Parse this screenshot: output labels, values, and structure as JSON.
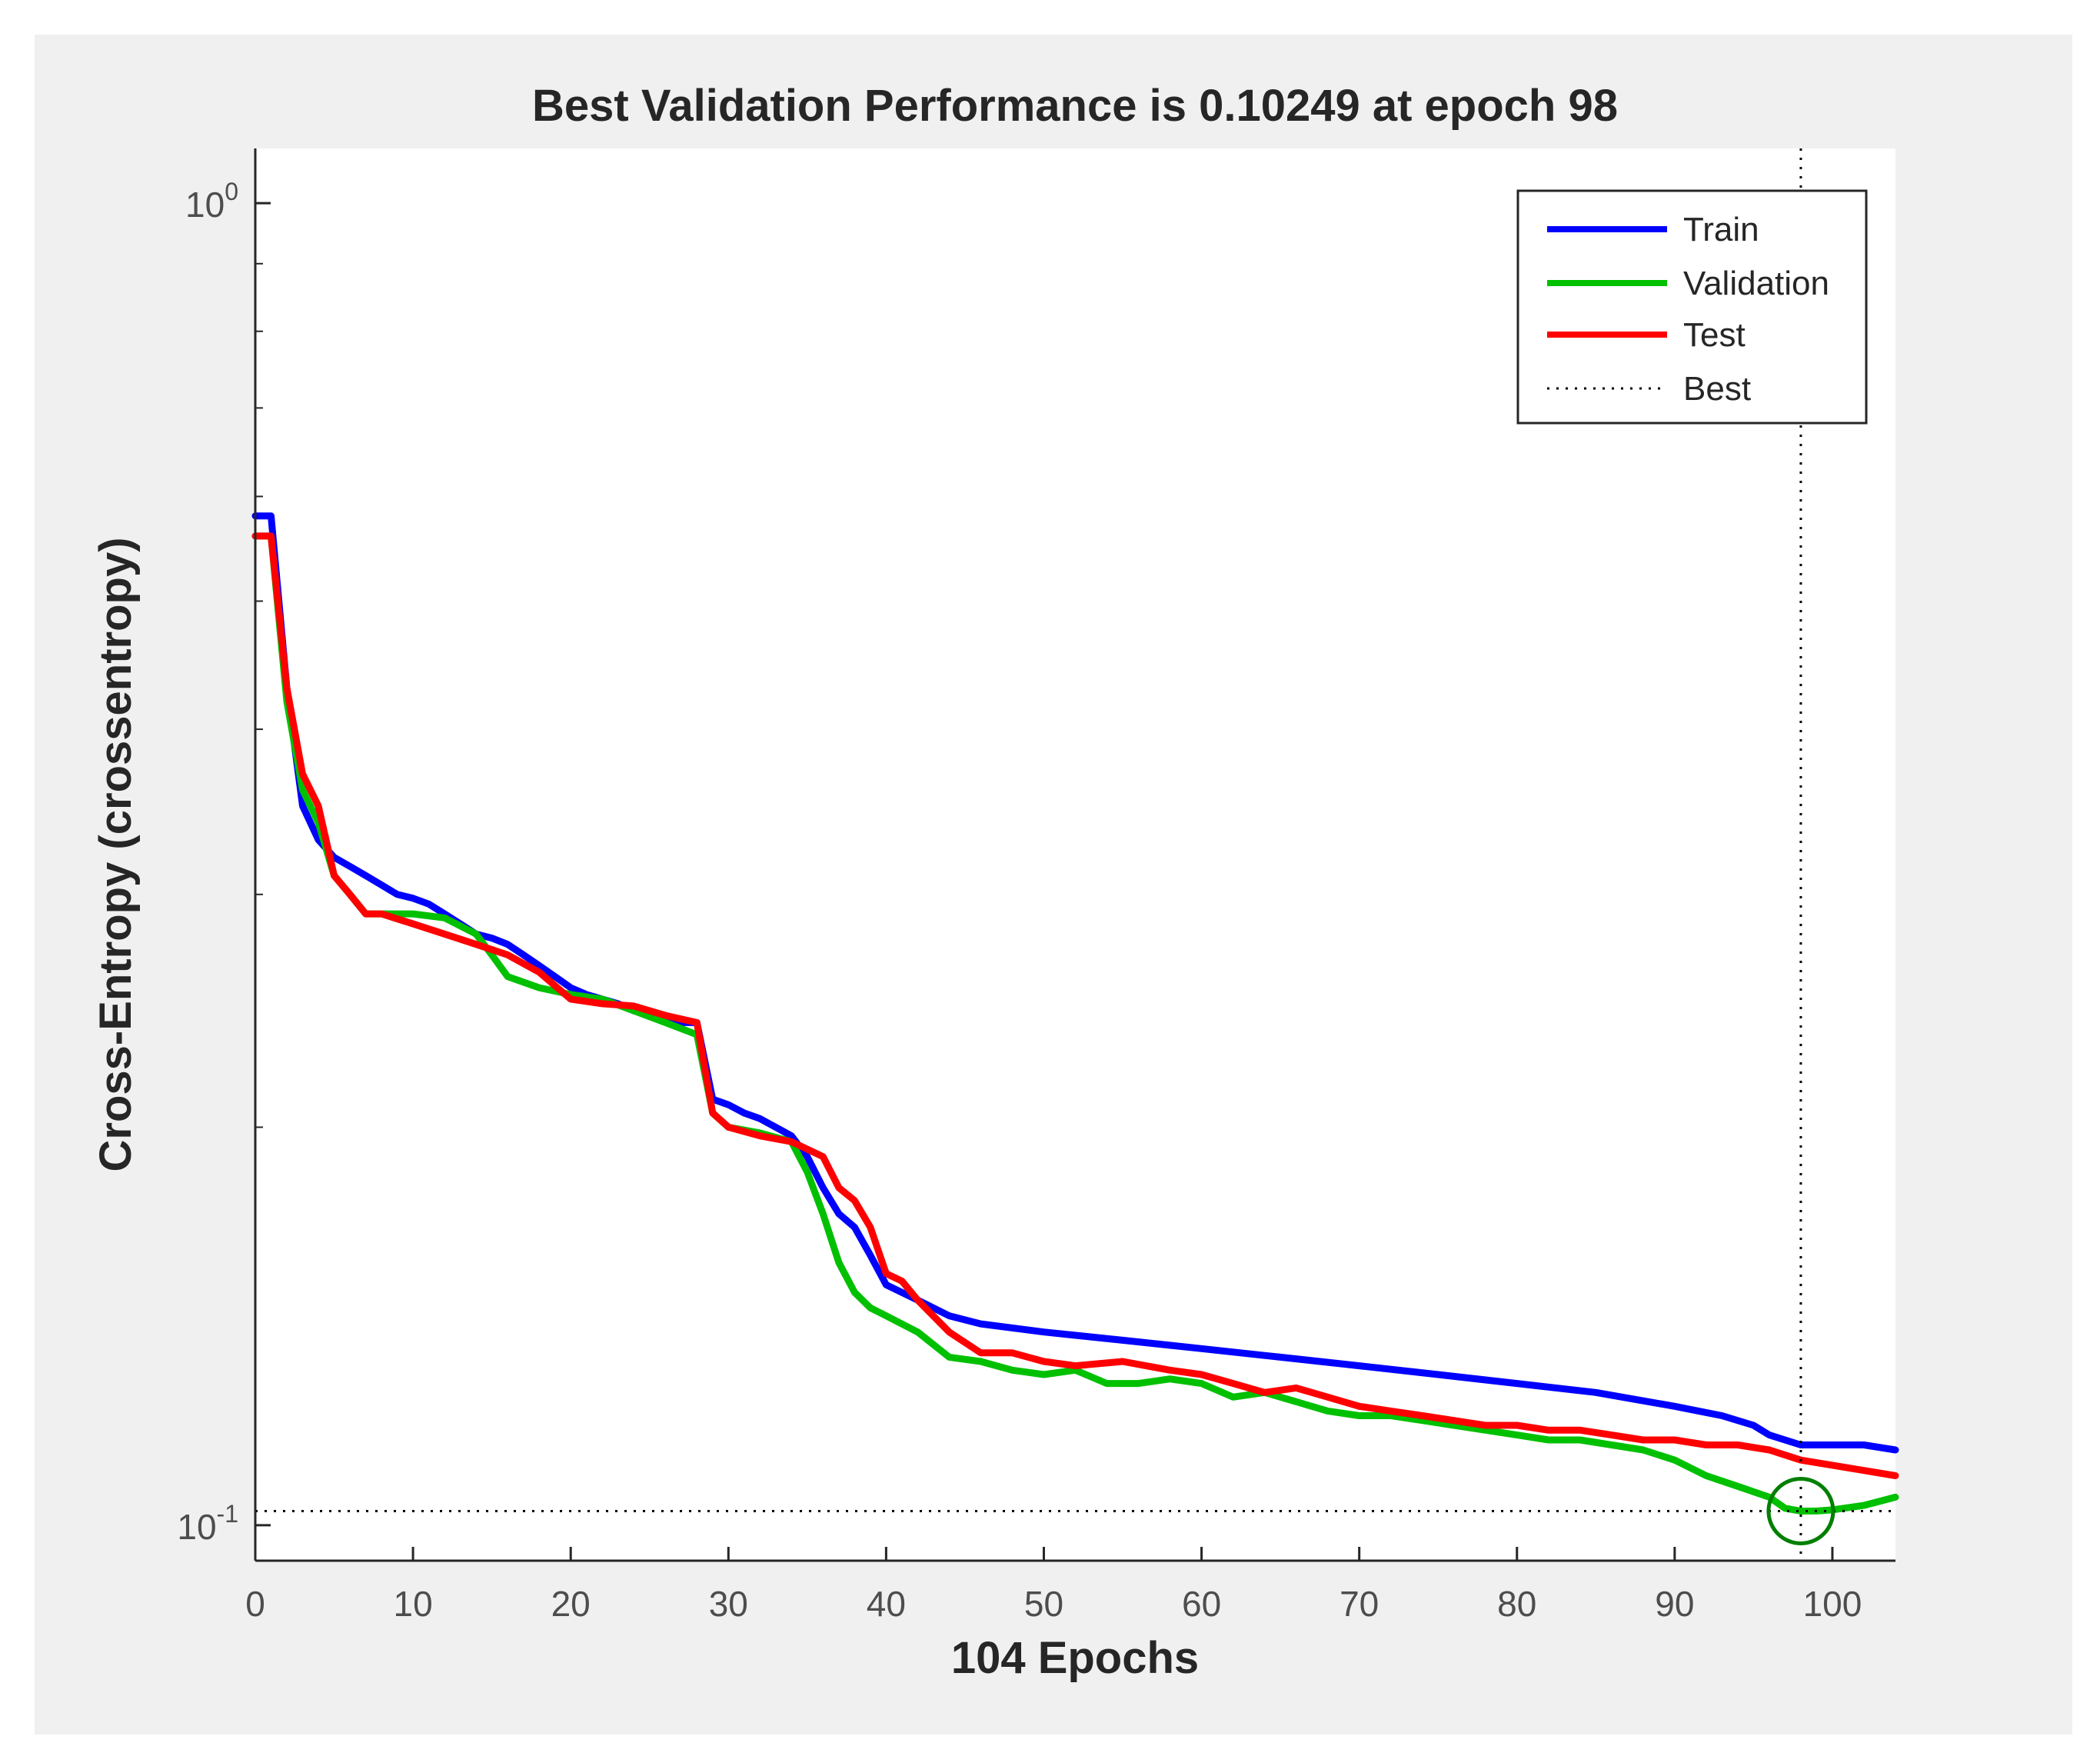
{
  "chart_data": {
    "type": "line",
    "title": "Best Validation Performance is 0.10249 at epoch 98",
    "xlabel": "104 Epochs",
    "ylabel": "Cross-Entropy  (crossentropy)",
    "xlim": [
      0,
      104
    ],
    "ylim": [
      0.094,
      1.1
    ],
    "yscale": "log",
    "xticks": [
      0,
      10,
      20,
      30,
      40,
      50,
      60,
      70,
      80,
      90,
      100
    ],
    "yticks": [
      {
        "value": 1.0,
        "base": "10",
        "exp": "0"
      },
      {
        "value": 0.1,
        "base": "10",
        "exp": "-1"
      }
    ],
    "grid": false,
    "legend_position": "top-right",
    "series": [
      {
        "name": "Train",
        "color": "#0000ff",
        "x": [
          0,
          1,
          2,
          3,
          4,
          5,
          6,
          7,
          8,
          9,
          10,
          11,
          12,
          13,
          14,
          15,
          16,
          17,
          18,
          19,
          20,
          21,
          22,
          23,
          24,
          25,
          26,
          27,
          28,
          29,
          30,
          31,
          32,
          33,
          34,
          35,
          36,
          37,
          38,
          39,
          40,
          42,
          44,
          46,
          50,
          55,
          60,
          65,
          70,
          75,
          80,
          85,
          90,
          93,
          95,
          96,
          98,
          100,
          102,
          104
        ],
        "values": [
          0.58,
          0.58,
          0.43,
          0.35,
          0.33,
          0.32,
          0.315,
          0.31,
          0.305,
          0.3,
          0.298,
          0.295,
          0.29,
          0.285,
          0.28,
          0.278,
          0.275,
          0.27,
          0.265,
          0.26,
          0.255,
          0.252,
          0.25,
          0.248,
          0.245,
          0.243,
          0.242,
          0.24,
          0.24,
          0.21,
          0.208,
          0.205,
          0.203,
          0.2,
          0.197,
          0.19,
          0.18,
          0.172,
          0.168,
          0.16,
          0.152,
          0.148,
          0.144,
          0.142,
          0.14,
          0.138,
          0.136,
          0.134,
          0.132,
          0.13,
          0.128,
          0.126,
          0.123,
          0.121,
          0.119,
          0.117,
          0.115,
          0.115,
          0.115,
          0.114
        ]
      },
      {
        "name": "Validation",
        "color": "#00c000",
        "x": [
          0,
          1,
          2,
          3,
          4,
          5,
          6,
          7,
          8,
          10,
          12,
          14,
          15,
          16,
          18,
          20,
          22,
          24,
          26,
          28,
          29,
          30,
          32,
          34,
          35,
          36,
          37,
          38,
          39,
          40,
          42,
          44,
          46,
          48,
          50,
          52,
          54,
          56,
          58,
          60,
          62,
          64,
          66,
          68,
          70,
          72,
          74,
          76,
          78,
          80,
          82,
          84,
          86,
          88,
          90,
          92,
          94,
          96,
          97,
          98,
          99,
          100,
          102,
          104
        ],
        "values": [
          0.56,
          0.56,
          0.42,
          0.36,
          0.34,
          0.31,
          0.3,
          0.29,
          0.29,
          0.29,
          0.288,
          0.28,
          0.27,
          0.26,
          0.255,
          0.252,
          0.25,
          0.245,
          0.24,
          0.235,
          0.205,
          0.2,
          0.198,
          0.195,
          0.185,
          0.172,
          0.158,
          0.15,
          0.146,
          0.144,
          0.14,
          0.134,
          0.133,
          0.131,
          0.13,
          0.131,
          0.128,
          0.128,
          0.129,
          0.128,
          0.125,
          0.126,
          0.124,
          0.122,
          0.121,
          0.121,
          0.12,
          0.119,
          0.118,
          0.117,
          0.116,
          0.116,
          0.115,
          0.114,
          0.112,
          0.109,
          0.107,
          0.105,
          0.103,
          0.10249,
          0.1025,
          0.1027,
          0.1035,
          0.105
        ]
      },
      {
        "name": "Test",
        "color": "#ff0000",
        "x": [
          0,
          1,
          2,
          3,
          4,
          5,
          6,
          7,
          8,
          10,
          12,
          14,
          16,
          18,
          20,
          22,
          24,
          26,
          28,
          29,
          30,
          32,
          34,
          36,
          37,
          38,
          39,
          40,
          41,
          42,
          44,
          46,
          48,
          50,
          52,
          55,
          58,
          60,
          62,
          64,
          66,
          68,
          70,
          72,
          74,
          76,
          78,
          80,
          82,
          84,
          86,
          88,
          90,
          92,
          94,
          96,
          98,
          100,
          102,
          104
        ],
        "values": [
          0.56,
          0.56,
          0.43,
          0.37,
          0.35,
          0.31,
          0.3,
          0.29,
          0.29,
          0.285,
          0.28,
          0.275,
          0.27,
          0.262,
          0.25,
          0.248,
          0.247,
          0.243,
          0.24,
          0.205,
          0.2,
          0.197,
          0.195,
          0.19,
          0.18,
          0.176,
          0.168,
          0.155,
          0.153,
          0.148,
          0.14,
          0.135,
          0.135,
          0.133,
          0.132,
          0.133,
          0.131,
          0.13,
          0.128,
          0.126,
          0.127,
          0.125,
          0.123,
          0.122,
          0.121,
          0.12,
          0.119,
          0.119,
          0.118,
          0.118,
          0.117,
          0.116,
          0.116,
          0.115,
          0.115,
          0.114,
          0.112,
          0.111,
          0.11,
          0.109
        ]
      },
      {
        "name": "Best",
        "color": "#000000",
        "style": "dotted",
        "epoch": 98,
        "value": 0.10249
      }
    ]
  }
}
